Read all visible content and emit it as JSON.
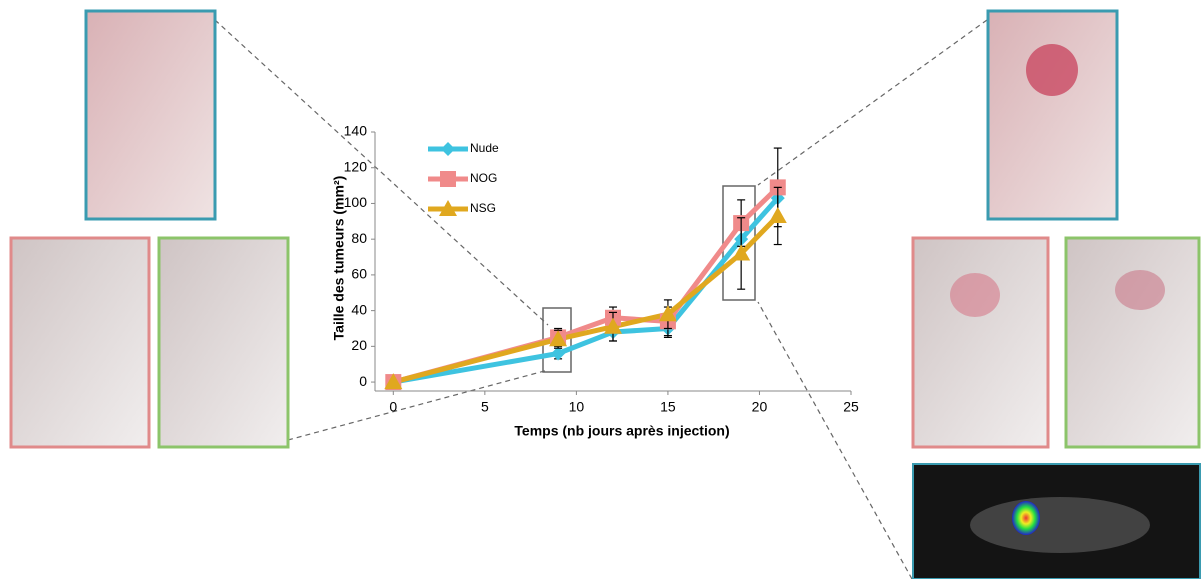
{
  "chart_data": {
    "type": "line",
    "ylabel": "Taille des tumeurs (mm²)",
    "xlabel": "Temps (nb jours après injection)",
    "x": [
      0,
      9,
      12,
      15,
      19,
      21
    ],
    "series": [
      {
        "name": "Nude",
        "color": "#3ec3e0",
        "marker": "diamond",
        "values": [
          0,
          16,
          28,
          30,
          80,
          103
        ],
        "errors": [
          0,
          3,
          5,
          5,
          10,
          10
        ]
      },
      {
        "name": "NOG",
        "color": "#f08a8a",
        "marker": "square",
        "values": [
          0,
          25,
          36,
          34,
          89,
          109
        ],
        "errors": [
          0,
          5,
          6,
          8,
          13,
          22
        ]
      },
      {
        "name": "NSG",
        "color": "#e0a81f",
        "marker": "triangle",
        "values": [
          0,
          24,
          31,
          38,
          72,
          93
        ],
        "errors": [
          0,
          5,
          8,
          8,
          20,
          16
        ]
      }
    ],
    "xlim": [
      -1,
      25
    ],
    "ylim": [
      -5,
      140
    ],
    "xticks": [
      0,
      5,
      10,
      15,
      20,
      25
    ],
    "yticks": [
      0,
      20,
      40,
      60,
      80,
      100,
      120,
      140
    ],
    "legend": "upper-left"
  }
}
